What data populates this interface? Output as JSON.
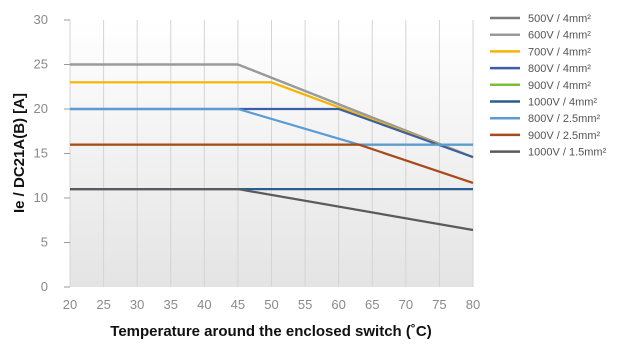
{
  "chart_data": {
    "type": "line",
    "xlabel": "Temperature around the enclosed switch (˚C)",
    "ylabel": "Ie / DC21A(B) [A]",
    "xlim": [
      20,
      80
    ],
    "ylim": [
      0,
      30
    ],
    "xticks": [
      20,
      25,
      30,
      35,
      40,
      45,
      50,
      55,
      60,
      65,
      70,
      75,
      80
    ],
    "yticks": [
      0,
      5,
      10,
      15,
      20,
      25,
      30
    ],
    "grid": true,
    "legend_position": "right",
    "series": [
      {
        "name": "500V / 4mm²",
        "color": "#7a7a7a",
        "x": [
          20,
          45,
          80
        ],
        "y": [
          25,
          25,
          14.6
        ]
      },
      {
        "name": "600V / 4mm²",
        "color": "#9a9a9a",
        "x": [
          20,
          45,
          80
        ],
        "y": [
          25,
          25,
          14.6
        ]
      },
      {
        "name": "700V / 4mm²",
        "color": "#f4b400",
        "x": [
          20,
          50,
          80
        ],
        "y": [
          23,
          23,
          14.6
        ]
      },
      {
        "name": "800V / 4mm²",
        "color": "#3b5ea8",
        "x": [
          20,
          60,
          80
        ],
        "y": [
          20,
          20,
          14.6
        ]
      },
      {
        "name": "900V / 4mm²",
        "color": "#7cbd3c",
        "x": [
          20,
          65,
          80
        ],
        "y": [
          16,
          16,
          16
        ]
      },
      {
        "name": "1000V / 4mm²",
        "color": "#2a5d8f",
        "x": [
          20,
          80
        ],
        "y": [
          11,
          11
        ]
      },
      {
        "name": "800V / 2.5mm²",
        "color": "#5b9bd5",
        "x": [
          20,
          45,
          63,
          80
        ],
        "y": [
          20,
          20,
          16,
          16
        ]
      },
      {
        "name": "900V / 2.5mm²",
        "color": "#a84a1b",
        "x": [
          20,
          63,
          80
        ],
        "y": [
          16,
          16,
          11.7
        ]
      },
      {
        "name": "1000V / 1.5mm²",
        "color": "#5a5a5a",
        "x": [
          20,
          45,
          80
        ],
        "y": [
          11,
          11,
          6.4
        ]
      }
    ]
  }
}
